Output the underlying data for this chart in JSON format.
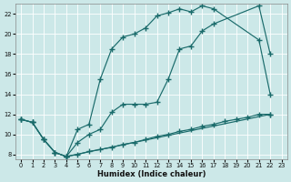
{
  "xlabel": "Humidex (Indice chaleur)",
  "xlim": [
    -0.5,
    23.5
  ],
  "ylim": [
    7.5,
    23.0
  ],
  "xticks": [
    0,
    1,
    2,
    3,
    4,
    5,
    6,
    7,
    8,
    9,
    10,
    11,
    12,
    13,
    14,
    15,
    16,
    17,
    18,
    19,
    20,
    21,
    22,
    23
  ],
  "yticks": [
    8,
    10,
    12,
    14,
    16,
    18,
    20,
    22
  ],
  "bg_color": "#cce8e8",
  "line_color": "#1a6b6b",
  "grid_color": "#ffffff",
  "line_upper_x": [
    0,
    1,
    2,
    3,
    4,
    5,
    6,
    7,
    8,
    9,
    10,
    11,
    12,
    13,
    14,
    15,
    16,
    17,
    21,
    22
  ],
  "line_upper_y": [
    11.5,
    11.2,
    9.5,
    8.2,
    7.8,
    10.5,
    11.0,
    15.5,
    18.5,
    19.7,
    20.0,
    20.6,
    21.8,
    22.1,
    22.5,
    22.2,
    22.8,
    22.5,
    19.4,
    14.0
  ],
  "line_mid_x": [
    0,
    1,
    2,
    3,
    4,
    5,
    6,
    7,
    8,
    9,
    10,
    11,
    12,
    13,
    14,
    15,
    16,
    17,
    21,
    22
  ],
  "line_mid_y": [
    11.5,
    11.2,
    9.5,
    8.2,
    7.8,
    9.2,
    10.0,
    10.5,
    12.2,
    13.0,
    13.0,
    13.0,
    13.2,
    15.5,
    18.5,
    18.8,
    20.3,
    21.0,
    22.8,
    18.0
  ],
  "line_lower_x": [
    0,
    1,
    2,
    3,
    4,
    22
  ],
  "line_lower_y": [
    11.5,
    11.2,
    9.5,
    8.2,
    7.8,
    12.0
  ],
  "line_flat_x": [
    4,
    5,
    6,
    7,
    8,
    9,
    10,
    11,
    12,
    13,
    14,
    15,
    16,
    17,
    18,
    19,
    20,
    21,
    22
  ],
  "line_flat_y": [
    7.8,
    8.0,
    8.3,
    8.5,
    8.7,
    9.0,
    9.2,
    9.5,
    9.8,
    10.0,
    10.3,
    10.5,
    10.8,
    11.0,
    11.3,
    11.5,
    11.7,
    12.0,
    12.0
  ]
}
